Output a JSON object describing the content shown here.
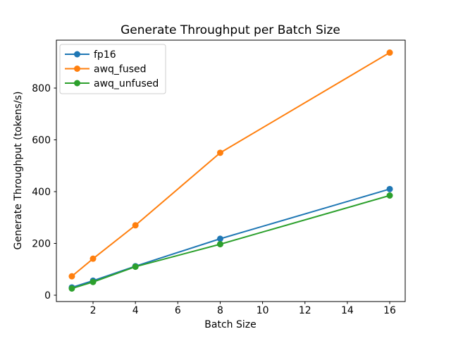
{
  "chart_data": {
    "type": "line",
    "title": "Generate Throughput per Batch Size",
    "xlabel": "Batch Size",
    "ylabel": "Generate Throughput (tokens/s)",
    "x": [
      1,
      2,
      4,
      8,
      16
    ],
    "series": [
      {
        "name": "fp16",
        "color": "#1f77b4",
        "values": [
          30,
          56,
          112,
          218,
          410
        ]
      },
      {
        "name": "awq_fused",
        "color": "#ff7f0e",
        "values": [
          73,
          141,
          270,
          550,
          937
        ]
      },
      {
        "name": "awq_unfused",
        "color": "#2ca02c",
        "values": [
          26,
          51,
          110,
          197,
          385
        ]
      }
    ],
    "xlim": [
      0.27,
      16.73
    ],
    "ylim": [
      -24.5,
      985
    ],
    "xticks": [
      2,
      4,
      6,
      8,
      10,
      12,
      14,
      16
    ],
    "yticks": [
      0,
      200,
      400,
      600,
      800
    ],
    "legend_position": "upper left",
    "legend_entries": [
      "fp16",
      "awq_fused",
      "awq_unfused"
    ],
    "grid": false,
    "marker": "o",
    "spine_color": "#000000",
    "legend_border_color": "#cccccc"
  }
}
